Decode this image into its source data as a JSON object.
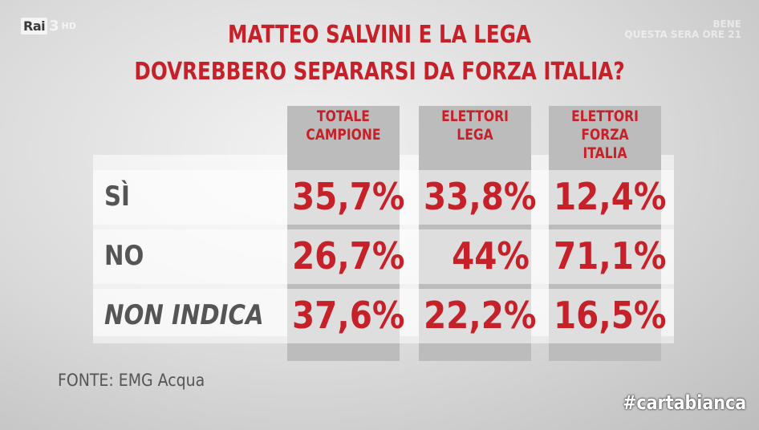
{
  "channel": {
    "logo_text": "Rai",
    "number": "3",
    "hd": "HD"
  },
  "ghost_text": {
    "line1": "BENE",
    "line2": "QUESTA SERA ORE 21"
  },
  "chart_data": {
    "type": "table",
    "title_line1": "MATTEO SALVINI E LA LEGA",
    "title_line2": "DOVREBBERO SEPARARSI DA FORZA ITALIA?",
    "columns": [
      {
        "line1": "TOTALE",
        "line2": "CAMPIONE"
      },
      {
        "line1": "ELETTORI",
        "line2": "LEGA"
      },
      {
        "line1": "ELETTORI",
        "line2": "FORZA ITALIA"
      }
    ],
    "rows": [
      {
        "label": "SÌ",
        "values": [
          "35,7%",
          "33,8%",
          "12,4%"
        ]
      },
      {
        "label": "NO",
        "values": [
          "26,7%",
          "44%",
          "71,1%"
        ]
      },
      {
        "label": "NON INDICA",
        "values": [
          "37,6%",
          "22,2%",
          "16,5%"
        ]
      }
    ],
    "colors": {
      "accent": "#c62028",
      "label": "#555555",
      "column_bg": "#bcbcbc"
    }
  },
  "source": "FONTE: EMG Acqua",
  "hashtag": "#cartabianca"
}
